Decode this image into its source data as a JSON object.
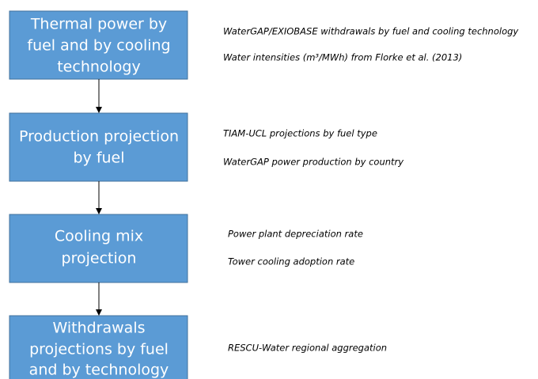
{
  "nodes": [
    {
      "lines": [
        "Thermal power by",
        "fuel and by cooling",
        "technology"
      ],
      "notes": [
        "WaterGAP/EXIOBASE withdrawals by fuel and cooling technology",
        "Water intensities (m³/MWh) from Florke et al. (2013)"
      ]
    },
    {
      "lines": [
        "Production projection",
        "by fuel"
      ],
      "notes": [
        "TIAM-UCL projections by fuel type",
        "WaterGAP power production by country"
      ]
    },
    {
      "lines": [
        "Cooling mix",
        "projection"
      ],
      "notes": [
        "Power plant depreciation rate",
        "Tower cooling adoption rate"
      ]
    },
    {
      "lines": [
        "Withdrawals",
        "projections by fuel",
        "and by technology"
      ],
      "notes": [
        "RESCU-Water regional aggregation"
      ]
    }
  ]
}
